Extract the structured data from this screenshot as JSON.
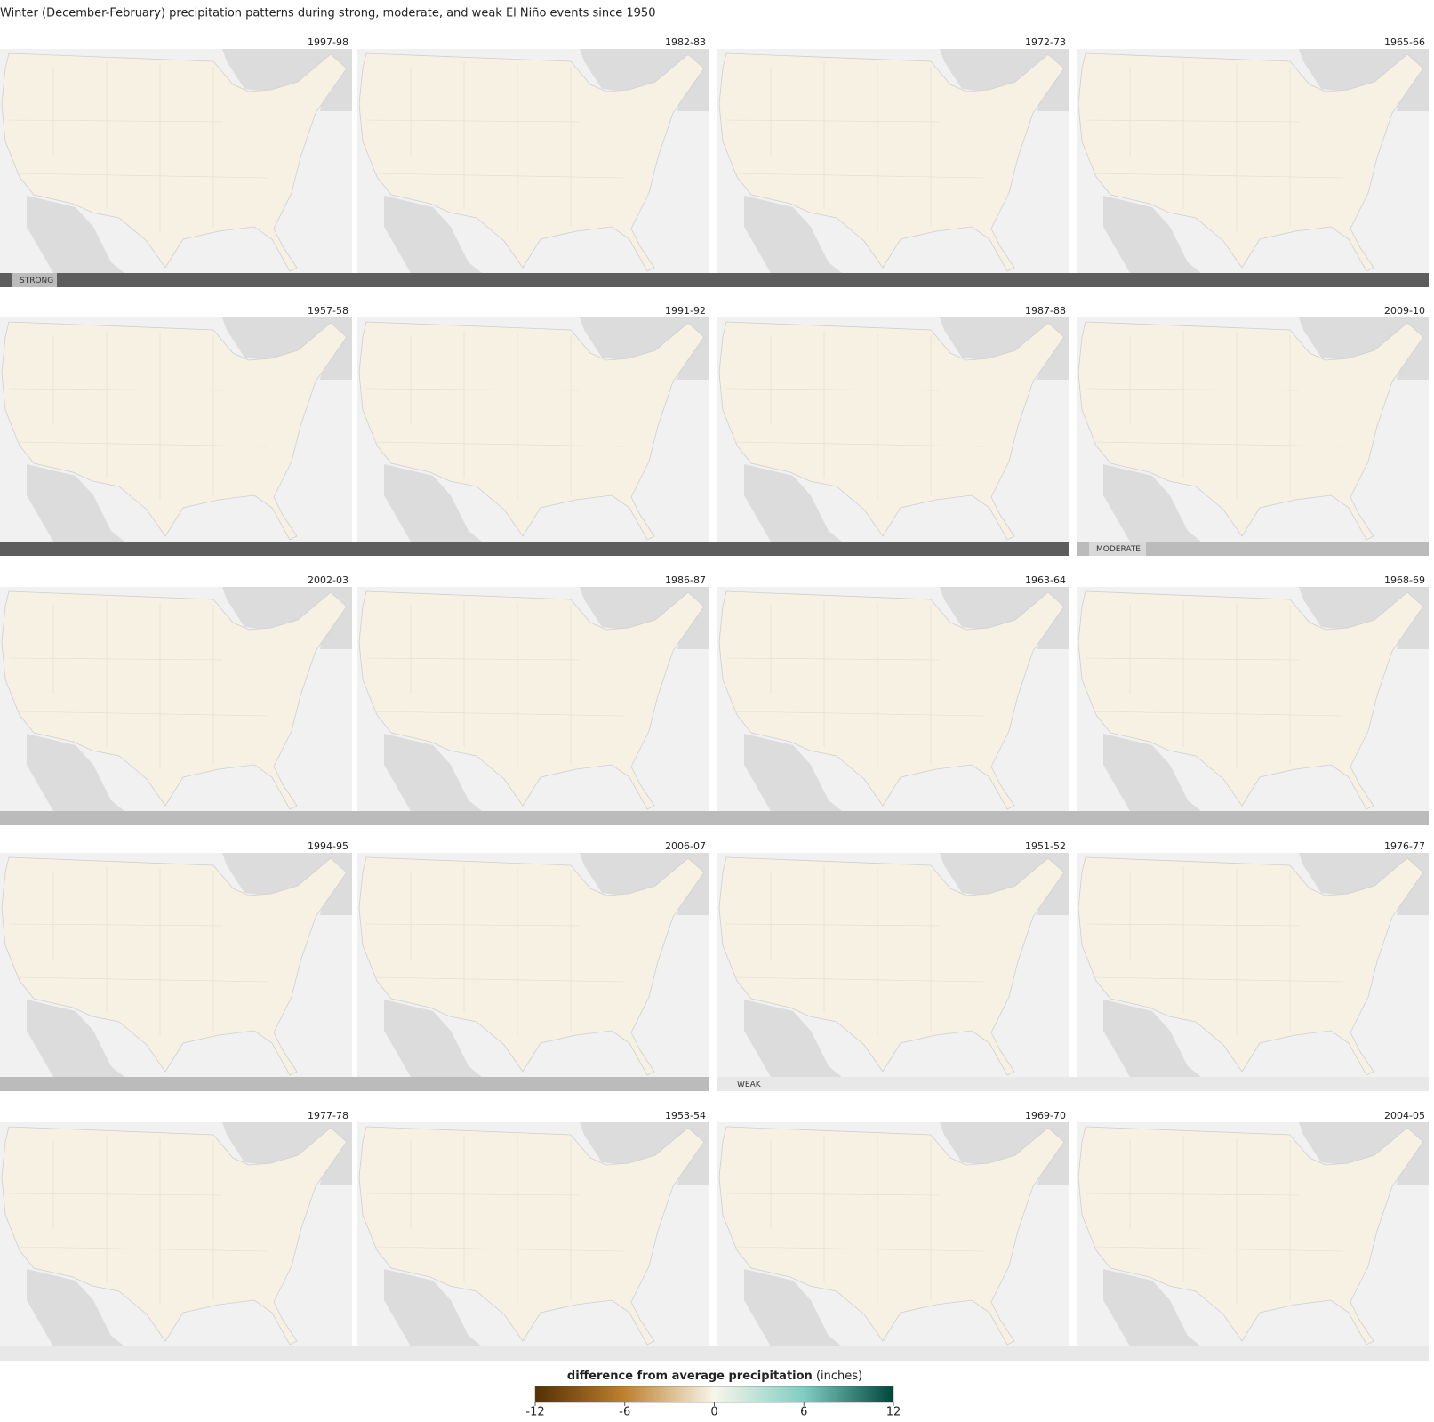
{
  "title": "Winter (December-February) precipitation patterns during strong, moderate, and weak El Niño events since 1950",
  "panels": [
    "1997-98",
    "1982-83",
    "1972-73",
    "1965-66",
    "1957-58",
    "1991-92",
    "1987-88",
    "2009-10",
    "2002-03",
    "1986-87",
    "1963-64",
    "1968-69",
    "1994-95",
    "2006-07",
    "1951-52",
    "1976-77",
    "1977-78",
    "1953-54",
    "1969-70",
    "2004-05"
  ],
  "categories": [
    "STRONG",
    "MODERATE",
    "WEAK"
  ],
  "legend": {
    "title": "difference from average precipitation",
    "unit": "(inches)",
    "lim": [
      -12,
      12
    ],
    "ticks": [
      -12,
      -6,
      0,
      6,
      12
    ]
  }
}
